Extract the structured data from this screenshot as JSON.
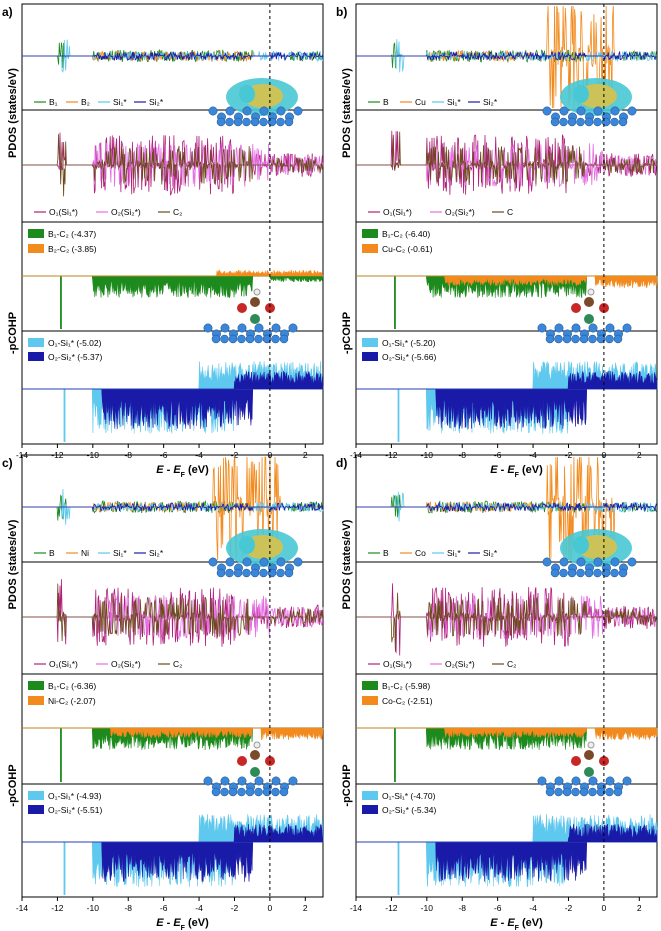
{
  "colors": {
    "green": "#1c8a1c",
    "orange": "#f28a1e",
    "cyan": "#5ec8ee",
    "navy": "#1a1aa8",
    "magenta": "#b0207a",
    "pink": "#e470e4",
    "olive": "#6b4a1a",
    "mol_cyan": "#48c8d4",
    "mol_yellow": "#d8c24a",
    "atom_blue": "#3a86d8"
  },
  "chart_data": {
    "type": "line",
    "xlabel": "E - E_F (eV)",
    "x_range": [
      -14,
      3
    ],
    "x_ticks": [
      -14,
      -12,
      -10,
      -8,
      -6,
      -4,
      -2,
      0,
      2
    ],
    "fermi_level": 0,
    "ylabel_pdos": "PDOS (states/eV)",
    "ylabel_cohp": "-pCOHP",
    "panels": [
      {
        "label": "a)",
        "pdos_top_legend": [
          "B₁",
          "B₂",
          "Si₁*",
          "Si₂*"
        ],
        "pdos_bottom_legend": [
          "O₁(Si₁*)",
          "O₂(Si₂*)",
          "C₂"
        ],
        "cohp_top_legend": [
          "B₁-C₂ (-4.37)",
          "B₂-C₂ (-3.85)"
        ],
        "cohp_bottom_legend": [
          "O₁-Si₁* (-5.02)",
          "O₂-Si₂* (-5.37)"
        ],
        "icohp_top": [
          -4.37,
          -3.85
        ],
        "icohp_bottom": [
          -5.02,
          -5.37
        ]
      },
      {
        "label": "b)",
        "pdos_top_legend": [
          "B",
          "Cu",
          "Si₁*",
          "Si₂*"
        ],
        "pdos_bottom_legend": [
          "O₁(Si₁*)",
          "O₂(Si₂*)",
          "C"
        ],
        "cohp_top_legend": [
          "B₁-C₂ (-6.40)",
          "Cu-C₂ (-0.61)"
        ],
        "cohp_bottom_legend": [
          "O₁-Si₁* (-5.20)",
          "O₂-Si₂* (-5.66)"
        ],
        "icohp_top": [
          -6.4,
          -0.61
        ],
        "icohp_bottom": [
          -5.2,
          -5.66
        ]
      },
      {
        "label": "c)",
        "pdos_top_legend": [
          "B",
          "Ni",
          "Si₁*",
          "Si₂*"
        ],
        "pdos_bottom_legend": [
          "O₁(Si₁*)",
          "O₂(Si₂*)",
          "C₂"
        ],
        "cohp_top_legend": [
          "B₁-C₂ (-6.36)",
          "Ni-C₂ (-2.07)"
        ],
        "cohp_bottom_legend": [
          "O₁-Si₁* (-4.93)",
          "O₂-Si₂* (-5.51)"
        ],
        "icohp_top": [
          -6.36,
          -2.07
        ],
        "icohp_bottom": [
          -4.93,
          -5.51
        ]
      },
      {
        "label": "d)",
        "pdos_top_legend": [
          "B",
          "Co",
          "Si₁*",
          "Si₂*"
        ],
        "pdos_bottom_legend": [
          "O₁(Si₁*)",
          "O₂(Si₂*)",
          "C₂"
        ],
        "cohp_top_legend": [
          "B₁-C₂ (-5.98)",
          "Co-C₂ (-2.51)"
        ],
        "cohp_bottom_legend": [
          "O₁-Si₁* (-4.70)",
          "O₂-Si₂* (-5.34)"
        ],
        "icohp_top": [
          -5.98,
          -2.51
        ],
        "icohp_bottom": [
          -4.7,
          -5.34
        ]
      }
    ]
  }
}
